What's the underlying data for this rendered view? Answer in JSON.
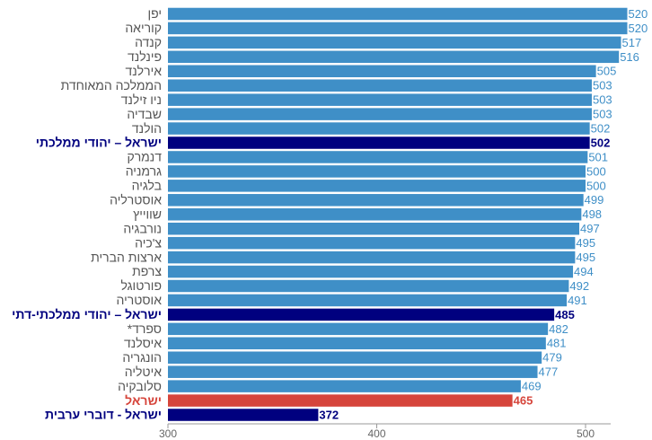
{
  "chart_data": {
    "type": "hbar",
    "categories": [
      "יפן",
      "קוריאה",
      "קנדה",
      "פינלנד",
      "אירלנד",
      "הממלכה המאוחדת",
      "ניו זילנד",
      "שבדיה",
      "הולנד",
      "ישראל – יהודי ממלכתי",
      "דנמרק",
      "גרמניה",
      "בלגיה",
      "אוסטרליה",
      "שווייץ",
      "נורבגיה",
      "צ'כיה",
      "ארצות הברית",
      "צרפת",
      "פורטוגל",
      "אוסטריה",
      "ישראל – יהודי ממלכתי-דתי",
      "ספרד*",
      "איסלנד",
      "הונגריה",
      "איטליה",
      "סלובקיה",
      "ישראל",
      "ישראל - דוברי ערבית"
    ],
    "values": [
      520,
      520,
      517,
      516,
      505,
      503,
      503,
      503,
      502,
      502,
      501,
      500,
      500,
      499,
      498,
      497,
      495,
      495,
      494,
      492,
      491,
      485,
      482,
      481,
      479,
      477,
      469,
      465,
      372
    ],
    "colors": [
      "#3f8fc7",
      "#3f8fc7",
      "#3f8fc7",
      "#3f8fc7",
      "#3f8fc7",
      "#3f8fc7",
      "#3f8fc7",
      "#3f8fc7",
      "#3f8fc7",
      "#00007f",
      "#3f8fc7",
      "#3f8fc7",
      "#3f8fc7",
      "#3f8fc7",
      "#3f8fc7",
      "#3f8fc7",
      "#3f8fc7",
      "#3f8fc7",
      "#3f8fc7",
      "#3f8fc7",
      "#3f8fc7",
      "#00007f",
      "#3f8fc7",
      "#3f8fc7",
      "#3f8fc7",
      "#3f8fc7",
      "#3f8fc7",
      "#d6453b",
      "#00007f"
    ],
    "xlim": [
      300,
      520
    ],
    "xticks": [
      300,
      400,
      500
    ]
  }
}
